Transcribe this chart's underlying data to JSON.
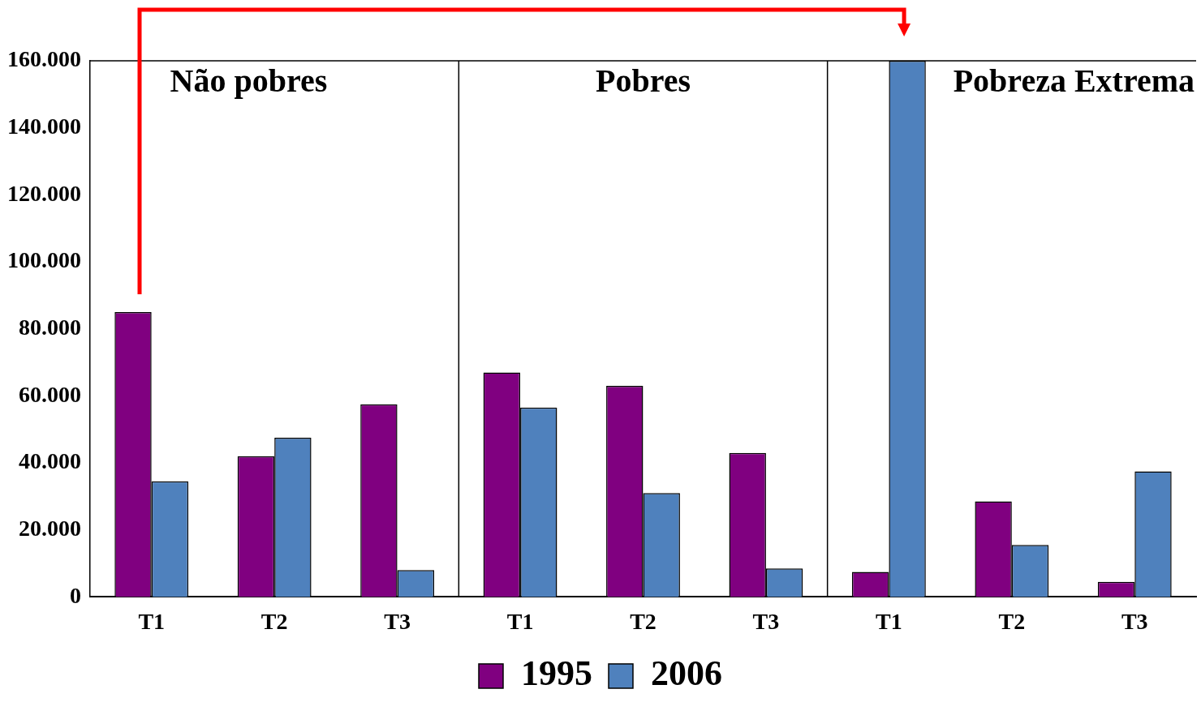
{
  "chart_data": {
    "type": "bar",
    "categories": [
      "T1",
      "T2",
      "T3",
      "T1",
      "T2",
      "T3",
      "T1",
      "T2",
      "T3"
    ],
    "series": [
      {
        "name": "1995",
        "color": "#800080",
        "values": [
          85000,
          42000,
          57500,
          67000,
          63000,
          43000,
          7500,
          28500,
          4500
        ]
      },
      {
        "name": "2006",
        "color": "#4f81bd",
        "values": [
          34500,
          47500,
          8000,
          56500,
          31000,
          8500,
          160000,
          15500,
          37500
        ]
      }
    ],
    "ylim": [
      0,
      160000
    ],
    "yticks": [
      {
        "value": 0,
        "label": "0"
      },
      {
        "value": 20000,
        "label": "20.000"
      },
      {
        "value": 40000,
        "label": "40.000"
      },
      {
        "value": 60000,
        "label": "60.000"
      },
      {
        "value": 80000,
        "label": "80.000"
      },
      {
        "value": 100000,
        "label": "100.000"
      },
      {
        "value": 120000,
        "label": "120.000"
      },
      {
        "value": 140000,
        "label": "140.000"
      },
      {
        "value": 160000,
        "label": "160.000"
      }
    ],
    "annotations": [
      "Não pobres",
      "Pobres",
      "Pobreza Extrema"
    ],
    "legend": "bottom",
    "grid": false
  }
}
